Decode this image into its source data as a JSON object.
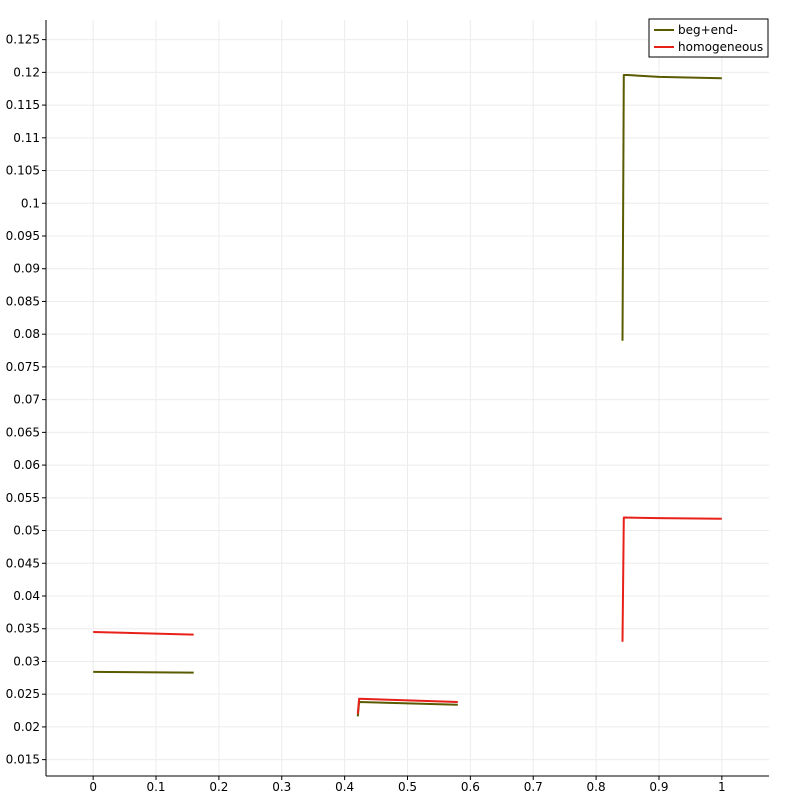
{
  "chart_data": {
    "type": "line",
    "title": "",
    "xlabel": "",
    "ylabel": "",
    "xlim": [
      -0.075,
      1.075
    ],
    "ylim": [
      0.0125,
      0.128
    ],
    "grid": true,
    "legend_position": "top-right",
    "x_ticks": [
      0,
      0.1,
      0.2,
      0.3,
      0.4,
      0.5,
      0.6,
      0.7,
      0.8,
      0.9,
      1
    ],
    "x_tick_labels": [
      "0",
      "0.1",
      "0.2",
      "0.3",
      "0.4",
      "0.5",
      "0.6",
      "0.7",
      "0.8",
      "0.9",
      "1"
    ],
    "y_ticks": [
      0.015,
      0.02,
      0.025,
      0.03,
      0.035,
      0.04,
      0.045,
      0.05,
      0.055,
      0.06,
      0.065,
      0.07,
      0.075,
      0.08,
      0.085,
      0.09,
      0.095,
      0.1,
      0.105,
      0.11,
      0.115,
      0.12,
      0.125
    ],
    "y_tick_labels": [
      "0.015",
      "0.02",
      "0.025",
      "0.03",
      "0.035",
      "0.04",
      "0.045",
      "0.05",
      "0.055",
      "0.06",
      "0.065",
      "0.07",
      "0.075",
      "0.08",
      "0.085",
      "0.09",
      "0.095",
      "0.1",
      "0.105",
      "0.11",
      "0.115",
      "0.12",
      "0.125"
    ],
    "series": [
      {
        "name": "beg+end-",
        "color": "#5a5a00",
        "segments": [
          {
            "x": [
              0,
              0.16
            ],
            "y": [
              0.0284,
              0.0283
            ]
          },
          {
            "x": [
              0.421,
              0.423,
              0.58
            ],
            "y": [
              0.0216,
              0.0238,
              0.0234
            ]
          },
          {
            "x": [
              0.842,
              0.844,
              0.85,
              0.9,
              1.0
            ],
            "y": [
              0.079,
              0.1196,
              0.1196,
              0.1193,
              0.1191
            ]
          }
        ]
      },
      {
        "name": "homogeneous",
        "color": "#e8201a",
        "segments": [
          {
            "x": [
              0,
              0.16
            ],
            "y": [
              0.0345,
              0.0341
            ]
          },
          {
            "x": [
              0.421,
              0.423,
              0.58
            ],
            "y": [
              0.022,
              0.0243,
              0.0238
            ]
          },
          {
            "x": [
              0.842,
              0.844,
              0.9,
              1.0
            ],
            "y": [
              0.033,
              0.052,
              0.0519,
              0.0518
            ]
          }
        ]
      }
    ]
  }
}
